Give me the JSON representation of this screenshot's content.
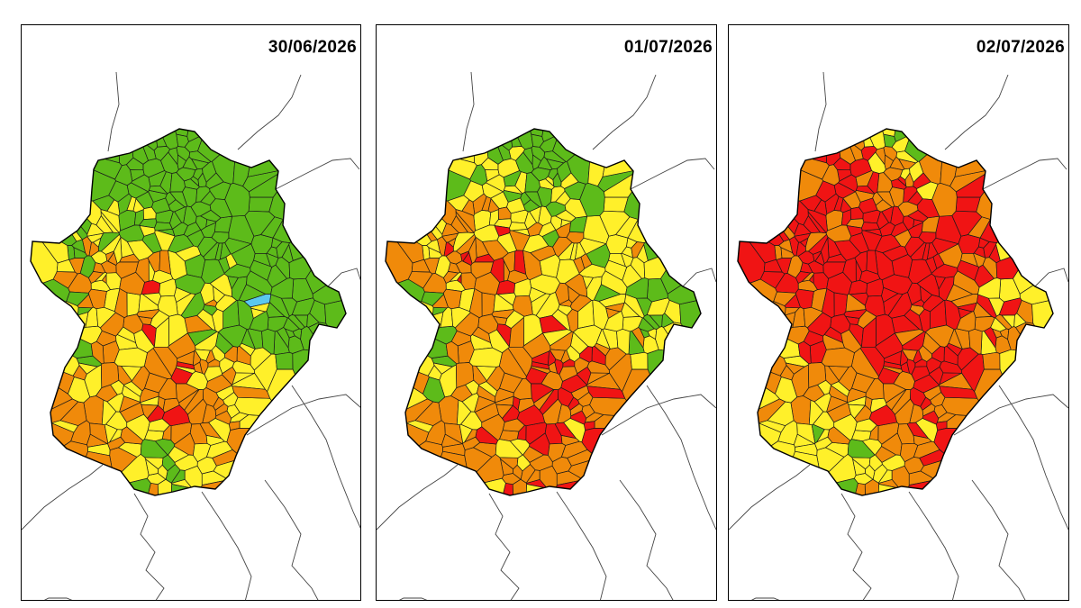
{
  "maps": [
    {
      "date": "30/06/2026",
      "mix": {
        "green": 0.38,
        "yellow": 0.34,
        "orange": 0.27,
        "red": 0.0,
        "blue": 0.01
      }
    },
    {
      "date": "01/07/2026",
      "mix": {
        "green": 0.17,
        "yellow": 0.4,
        "orange": 0.38,
        "red": 0.05,
        "blue": 0.0
      }
    },
    {
      "date": "02/07/2026",
      "mix": {
        "green": 0.07,
        "yellow": 0.15,
        "orange": 0.33,
        "red": 0.45,
        "blue": 0.0
      }
    }
  ],
  "colors": {
    "green": "#5dbb1a",
    "yellow": "#fff02a",
    "orange": "#f08a0a",
    "red": "#f01414",
    "blue": "#5bc8ef",
    "border": "#1a1a1a",
    "outline": "#000000"
  }
}
